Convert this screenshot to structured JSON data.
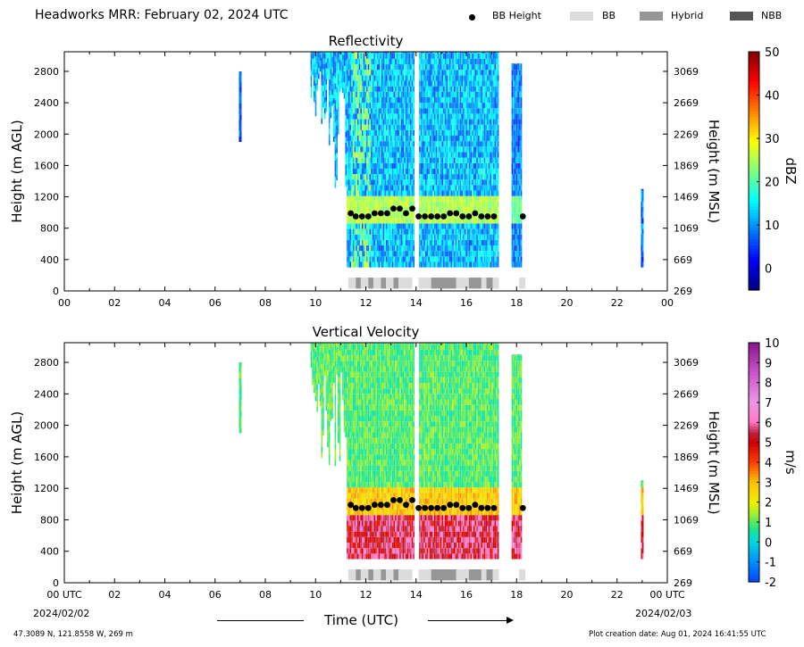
{
  "header": {
    "title": "Headworks MRR:  February 02, 2024 UTC",
    "legend": [
      {
        "label": "BB Height",
        "kind": "dot",
        "color": "#000000"
      },
      {
        "label": "BB",
        "kind": "swatch",
        "color": "#dcdcdc"
      },
      {
        "label": "Hybrid",
        "kind": "swatch",
        "color": "#969696"
      },
      {
        "label": "NBB",
        "kind": "swatch",
        "color": "#555555"
      }
    ]
  },
  "footer": {
    "coords": "47.3089 N, 121.8558 W, 269 m",
    "created": "Plot creation date: Aug 01, 2024 16:41:55 UTC",
    "xlabel": "Time (UTC)",
    "start_date": "2024/02/02",
    "end_date": "2024/02/03"
  },
  "chart_data": [
    {
      "type": "heatmap",
      "title": "Reflectivity",
      "ylabel_left": "Height (m AGL)",
      "ylabel_right": "Height (m MSL)",
      "xlim": [
        0,
        24
      ],
      "ylim": [
        0,
        3050
      ],
      "x_ticks": [
        "00",
        "02",
        "04",
        "06",
        "08",
        "10",
        "12",
        "14",
        "16",
        "18",
        "20",
        "22",
        "00"
      ],
      "y_ticks_left": [
        0,
        400,
        800,
        1200,
        1600,
        2000,
        2400,
        2800
      ],
      "y_ticks_right": [
        269,
        669,
        1069,
        1469,
        1869,
        2269,
        2669,
        3069
      ],
      "colorbar": {
        "label": "dBZ",
        "min": -5,
        "max": 50,
        "ticks": [
          0,
          10,
          20,
          30,
          40,
          50
        ],
        "colormap": "jet"
      },
      "bb_height": [
        {
          "t": 11.4,
          "h": 990
        },
        {
          "t": 11.6,
          "h": 950
        },
        {
          "t": 11.85,
          "h": 950
        },
        {
          "t": 12.1,
          "h": 950
        },
        {
          "t": 12.35,
          "h": 990
        },
        {
          "t": 12.6,
          "h": 990
        },
        {
          "t": 12.85,
          "h": 990
        },
        {
          "t": 13.1,
          "h": 1050
        },
        {
          "t": 13.35,
          "h": 1050
        },
        {
          "t": 13.6,
          "h": 990
        },
        {
          "t": 13.85,
          "h": 1050
        },
        {
          "t": 14.1,
          "h": 950
        },
        {
          "t": 14.35,
          "h": 950
        },
        {
          "t": 14.6,
          "h": 950
        },
        {
          "t": 14.85,
          "h": 950
        },
        {
          "t": 15.1,
          "h": 950
        },
        {
          "t": 15.35,
          "h": 990
        },
        {
          "t": 15.6,
          "h": 990
        },
        {
          "t": 15.85,
          "h": 950
        },
        {
          "t": 16.1,
          "h": 950
        },
        {
          "t": 16.35,
          "h": 990
        },
        {
          "t": 16.6,
          "h": 950
        },
        {
          "t": 16.85,
          "h": 950
        },
        {
          "t": 17.1,
          "h": 950
        },
        {
          "t": 18.25,
          "h": 950
        }
      ],
      "bb_class": [
        {
          "start": 11.3,
          "end": 11.6,
          "class": "BB"
        },
        {
          "start": 11.6,
          "end": 11.8,
          "class": "Hybrid"
        },
        {
          "start": 11.8,
          "end": 12.1,
          "class": "BB"
        },
        {
          "start": 12.1,
          "end": 12.3,
          "class": "Hybrid"
        },
        {
          "start": 12.3,
          "end": 12.6,
          "class": "BB"
        },
        {
          "start": 12.6,
          "end": 12.8,
          "class": "Hybrid"
        },
        {
          "start": 12.8,
          "end": 13.1,
          "class": "BB"
        },
        {
          "start": 13.1,
          "end": 13.3,
          "class": "Hybrid"
        },
        {
          "start": 13.3,
          "end": 13.85,
          "class": "BB"
        },
        {
          "start": 14.1,
          "end": 14.6,
          "class": "BB"
        },
        {
          "start": 14.6,
          "end": 15.6,
          "class": "Hybrid"
        },
        {
          "start": 15.6,
          "end": 16.1,
          "class": "BB"
        },
        {
          "start": 16.1,
          "end": 16.6,
          "class": "Hybrid"
        },
        {
          "start": 16.6,
          "end": 16.8,
          "class": "BB"
        },
        {
          "start": 16.8,
          "end": 17.05,
          "class": "Hybrid"
        },
        {
          "start": 17.05,
          "end": 17.3,
          "class": "BB"
        },
        {
          "start": 18.1,
          "end": 18.35,
          "class": "BB"
        }
      ]
    },
    {
      "type": "heatmap",
      "title": "Vertical Velocity",
      "ylabel_left": "Height (m AGL)",
      "ylabel_right": "Height (m MSL)",
      "xlim": [
        0,
        24
      ],
      "ylim": [
        0,
        3050
      ],
      "x_ticks": [
        "00 UTC",
        "02",
        "04",
        "06",
        "08",
        "10",
        "12",
        "14",
        "16",
        "18",
        "20",
        "22",
        "00 UTC"
      ],
      "y_ticks_left": [
        0,
        400,
        800,
        1200,
        1600,
        2000,
        2400,
        2800
      ],
      "y_ticks_right": [
        269,
        669,
        1069,
        1469,
        1869,
        2269,
        2669,
        3069
      ],
      "colorbar": {
        "label": "m/s",
        "min": -2,
        "max": 10,
        "ticks": [
          -2,
          -1,
          0,
          1,
          2,
          3,
          4,
          5,
          6,
          7,
          8,
          9,
          10
        ],
        "colormap": "velocity"
      },
      "bb_height": [
        {
          "t": 11.4,
          "h": 990
        },
        {
          "t": 11.6,
          "h": 950
        },
        {
          "t": 11.85,
          "h": 950
        },
        {
          "t": 12.1,
          "h": 950
        },
        {
          "t": 12.35,
          "h": 990
        },
        {
          "t": 12.6,
          "h": 990
        },
        {
          "t": 12.85,
          "h": 990
        },
        {
          "t": 13.1,
          "h": 1050
        },
        {
          "t": 13.35,
          "h": 1050
        },
        {
          "t": 13.6,
          "h": 990
        },
        {
          "t": 13.85,
          "h": 1050
        },
        {
          "t": 14.1,
          "h": 950
        },
        {
          "t": 14.35,
          "h": 950
        },
        {
          "t": 14.6,
          "h": 950
        },
        {
          "t": 14.85,
          "h": 950
        },
        {
          "t": 15.1,
          "h": 950
        },
        {
          "t": 15.35,
          "h": 990
        },
        {
          "t": 15.6,
          "h": 990
        },
        {
          "t": 15.85,
          "h": 950
        },
        {
          "t": 16.1,
          "h": 950
        },
        {
          "t": 16.35,
          "h": 990
        },
        {
          "t": 16.6,
          "h": 950
        },
        {
          "t": 16.85,
          "h": 950
        },
        {
          "t": 17.1,
          "h": 950
        },
        {
          "t": 18.25,
          "h": 950
        }
      ],
      "bb_class": [
        {
          "start": 11.3,
          "end": 11.6,
          "class": "BB"
        },
        {
          "start": 11.6,
          "end": 11.8,
          "class": "Hybrid"
        },
        {
          "start": 11.8,
          "end": 12.1,
          "class": "BB"
        },
        {
          "start": 12.1,
          "end": 12.3,
          "class": "Hybrid"
        },
        {
          "start": 12.3,
          "end": 12.6,
          "class": "BB"
        },
        {
          "start": 12.6,
          "end": 12.8,
          "class": "Hybrid"
        },
        {
          "start": 12.8,
          "end": 13.1,
          "class": "BB"
        },
        {
          "start": 13.1,
          "end": 13.3,
          "class": "Hybrid"
        },
        {
          "start": 13.3,
          "end": 13.85,
          "class": "BB"
        },
        {
          "start": 14.1,
          "end": 14.6,
          "class": "BB"
        },
        {
          "start": 14.6,
          "end": 15.6,
          "class": "Hybrid"
        },
        {
          "start": 15.6,
          "end": 16.1,
          "class": "BB"
        },
        {
          "start": 16.1,
          "end": 16.6,
          "class": "Hybrid"
        },
        {
          "start": 16.6,
          "end": 16.8,
          "class": "BB"
        },
        {
          "start": 16.8,
          "end": 17.05,
          "class": "Hybrid"
        },
        {
          "start": 17.05,
          "end": 17.3,
          "class": "BB"
        },
        {
          "start": 18.1,
          "end": 18.35,
          "class": "BB"
        }
      ]
    }
  ]
}
